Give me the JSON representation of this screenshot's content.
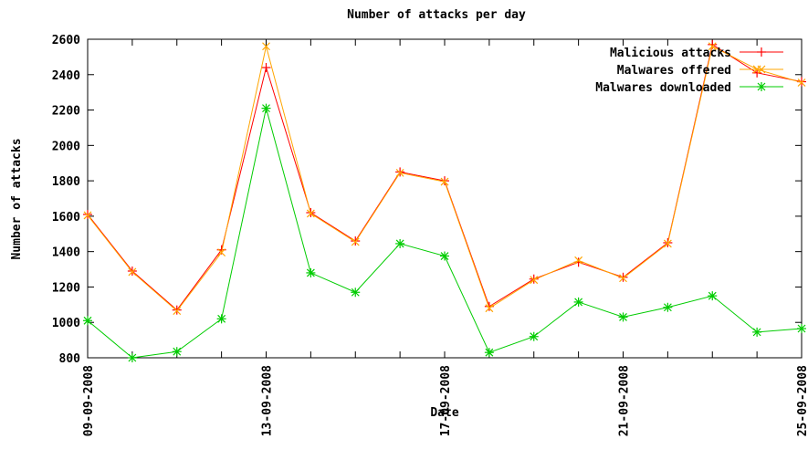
{
  "chart_data": {
    "type": "line",
    "title": "Number of attacks per day",
    "xlabel": "Date",
    "ylabel": "Number of attacks",
    "ylim": [
      800,
      2600
    ],
    "yticks": [
      800,
      1000,
      1200,
      1400,
      1600,
      1800,
      2000,
      2200,
      2400,
      2600
    ],
    "x": [
      "09-09-2008",
      "10-09-2008",
      "11-09-2008",
      "12-09-2008",
      "13-09-2008",
      "14-09-2008",
      "15-09-2008",
      "16-09-2008",
      "17-09-2008",
      "18-09-2008",
      "19-09-2008",
      "20-09-2008",
      "21-09-2008",
      "22-09-2008",
      "23-09-2008",
      "24-09-2008",
      "25-09-2008"
    ],
    "xtick_labels": [
      "09-09-2008",
      "13-09-2008",
      "17-09-2008",
      "21-09-2008",
      "25-09-2008"
    ],
    "xtick_indices": [
      0,
      4,
      8,
      12,
      16
    ],
    "legend_position": "top-right",
    "grid": false,
    "series": [
      {
        "name": "Malicious attacks",
        "color": "#ff0000",
        "marker": "plus",
        "values": [
          1610,
          1290,
          1070,
          1410,
          2440,
          1620,
          1460,
          1850,
          1800,
          1090,
          1245,
          1340,
          1255,
          1450,
          2570,
          2410,
          2360
        ]
      },
      {
        "name": "Malwares offered",
        "color": "#ffa500",
        "marker": "cross",
        "values": [
          1605,
          1285,
          1065,
          1395,
          2560,
          1615,
          1455,
          1845,
          1795,
          1080,
          1240,
          1350,
          1250,
          1445,
          2560,
          2430,
          2355
        ]
      },
      {
        "name": "Malwares downloaded",
        "color": "#00cc00",
        "marker": "star",
        "values": [
          1010,
          800,
          835,
          1020,
          2210,
          1280,
          1170,
          1445,
          1375,
          830,
          920,
          1115,
          1030,
          1085,
          1150,
          945,
          965
        ]
      }
    ]
  }
}
